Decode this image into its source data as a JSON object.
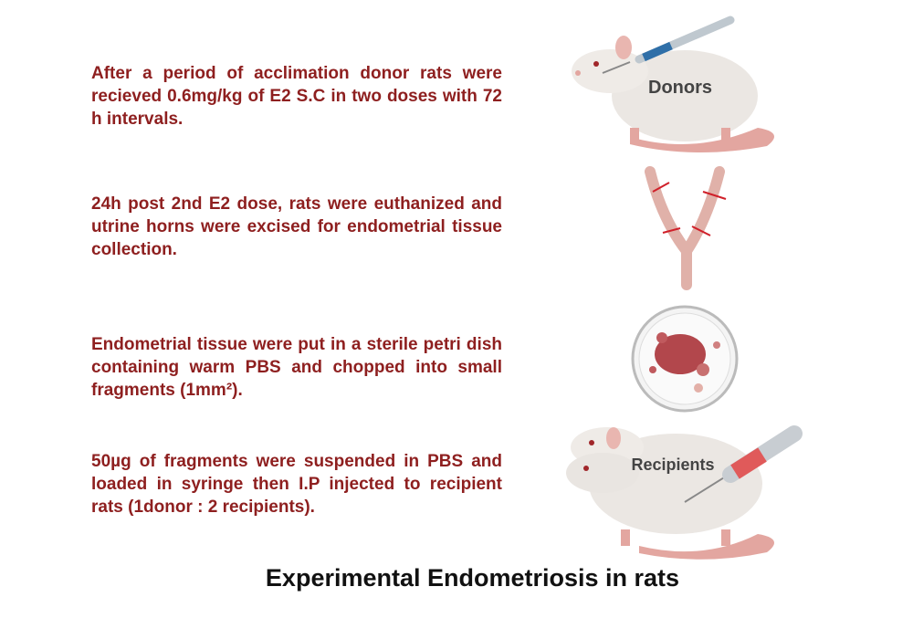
{
  "steps": [
    "After a period of acclimation donor rats were recieved 0.6mg/kg of E2 S.C in two doses with 72 h intervals.",
    "24h post 2nd E2 dose, rats were euthanized and utrine horns were excised for endometrial tissue collection.",
    "Endometrial tissue were put in a sterile petri dish containing warm PBS and chopped into small fragments (1mm²).",
    "50µg of fragments were suspended in PBS and loaded in syringe then I.P injected to recipient rats (1donor : 2 recipients)."
  ],
  "labels": {
    "donors": "Donors",
    "recipients": "Recipients"
  },
  "title": "Experimental Endometriosis in rats"
}
